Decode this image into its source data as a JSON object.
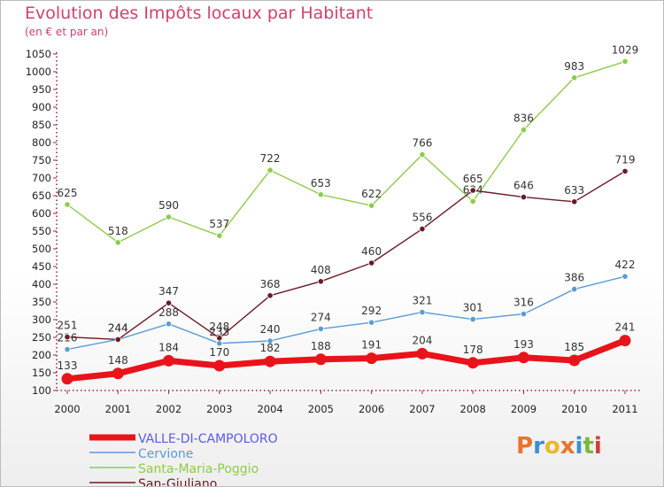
{
  "header": {
    "title": "Evolution des Impôts locaux par Habitant",
    "subtitle": "(en € et par an)"
  },
  "logo": {
    "text": "Proxiti",
    "colors": [
      "#e8742c",
      "#3a8fd6",
      "#e8b92c",
      "#e8742c",
      "#3a8fd6",
      "#7ab83a",
      "#d23c3c"
    ]
  },
  "chart_data": {
    "type": "line",
    "title": "Evolution des Impôts locaux par Habitant",
    "subtitle": "(en € et par an)",
    "xlabel": "",
    "ylabel": "",
    "x": [
      "2000",
      "2001",
      "2002",
      "2003",
      "2004",
      "2005",
      "2006",
      "2007",
      "2008",
      "2009",
      "2010",
      "2011"
    ],
    "ylim": [
      100,
      1050
    ],
    "yticks": [
      100,
      150,
      200,
      250,
      300,
      350,
      400,
      450,
      500,
      550,
      600,
      650,
      700,
      750,
      800,
      850,
      900,
      950,
      1000,
      1050
    ],
    "grid": false,
    "legend_position": "bottom-left",
    "series": [
      {
        "name": "VALLE-DI-CAMPOLORO",
        "color": "#e8141b",
        "legend_color": "#5a5aee",
        "values": [
          133,
          148,
          184,
          170,
          182,
          188,
          191,
          204,
          178,
          193,
          185,
          241
        ]
      },
      {
        "name": "Cervione",
        "color": "#5b9bd5",
        "values": [
          216,
          244,
          288,
          233,
          240,
          274,
          292,
          321,
          301,
          316,
          386,
          422
        ]
      },
      {
        "name": "Santa-Maria-Poggio",
        "color": "#8ccc4a",
        "values": [
          625,
          518,
          590,
          537,
          722,
          653,
          622,
          766,
          634,
          836,
          983,
          1029
        ]
      },
      {
        "name": "San-Giuliano",
        "color": "#6b1a23",
        "values": [
          251,
          244,
          347,
          248,
          368,
          408,
          460,
          556,
          665,
          646,
          633,
          719
        ]
      }
    ]
  }
}
